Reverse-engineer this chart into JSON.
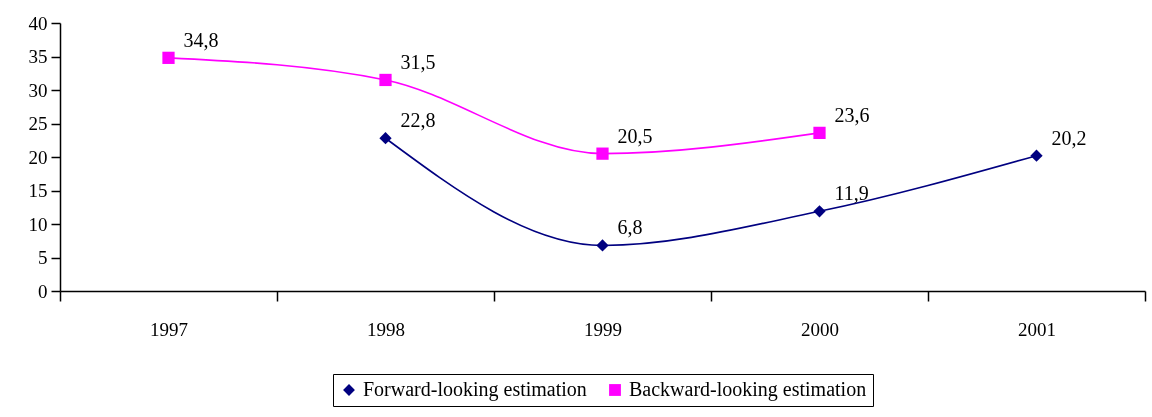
{
  "chart_data": {
    "type": "line",
    "categories": [
      "1997",
      "1998",
      "1999",
      "2000",
      "2001"
    ],
    "series": [
      {
        "name": "Forward-looking estimation",
        "color": "#000080",
        "marker": "diamond",
        "values": [
          null,
          22.8,
          6.8,
          11.9,
          20.2
        ],
        "value_labels": [
          null,
          "22,8",
          "6,8",
          "11,9",
          "20,2"
        ]
      },
      {
        "name": "Backward-looking estimation",
        "color": "#ff00ff",
        "marker": "square",
        "values": [
          34.8,
          31.5,
          20.5,
          23.6,
          null
        ],
        "value_labels": [
          "34,8",
          "31,5",
          "20,5",
          "23,6",
          null
        ]
      }
    ],
    "ylim": [
      0,
      40
    ],
    "yticks": [
      0,
      5,
      10,
      15,
      20,
      25,
      30,
      35,
      40
    ],
    "legend": "bottom"
  }
}
